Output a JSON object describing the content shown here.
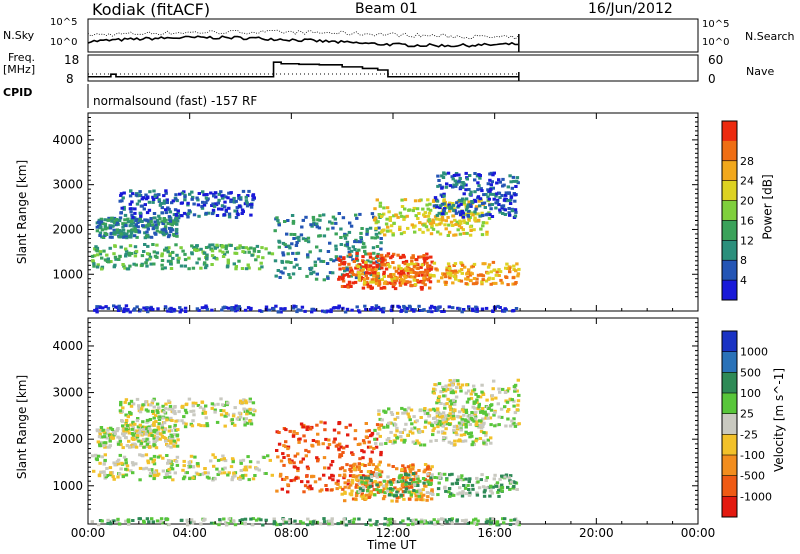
{
  "header": {
    "station": "Kodiak (fitACF)",
    "beam": "Beam 01",
    "date": "16/Jun/2012"
  },
  "nsky_panel": {
    "left_label": "N.Sky",
    "left_ticks": [
      "10^5",
      "10^0"
    ],
    "right_ticks": [
      "10^5",
      "10^0"
    ],
    "right_label": "N.Search"
  },
  "freq_panel": {
    "left_label_line1": "Freq.",
    "left_label_line2": "[MHz]",
    "left_ticks": [
      "18",
      "8"
    ],
    "right_ticks": [
      "60",
      "0"
    ],
    "right_label": "Nave"
  },
  "cpid": {
    "label": "CPID",
    "text": "normalsound (fast) -157 RF"
  },
  "chart_data": [
    {
      "type": "heatmap",
      "name": "power",
      "ylabel": "Slant Range [km]",
      "yticks": [
        1000,
        2000,
        3000,
        4000
      ],
      "ylim": [
        180,
        4600
      ],
      "xlim": [
        0,
        24
      ],
      "data_end_hour": 16.95,
      "colorbar_label": "Power [dB]",
      "colorbar_ticks": [
        "4",
        "8",
        "12",
        "16",
        "20",
        "24",
        "28"
      ],
      "colors": [
        "#1919d8",
        "#2455b5",
        "#2b8f7c",
        "#3aa25a",
        "#7fcf3c",
        "#ddd222",
        "#f2a81c",
        "#ef6e14",
        "#ec2a0f"
      ]
    },
    {
      "type": "heatmap",
      "name": "velocity",
      "ylabel": "Slant Range [km]",
      "yticks": [
        1000,
        2000,
        3000,
        4000
      ],
      "ylim": [
        180,
        4600
      ],
      "xlim": [
        0,
        24
      ],
      "data_end_hour": 16.95,
      "colorbar_label": "Velocity [m s^-1]",
      "colorbar_ticks": [
        "1000",
        "500",
        "100",
        "25",
        "-25",
        "-100",
        "-500",
        "-1000"
      ],
      "colors": [
        "#1a33c4",
        "#2a72b8",
        "#2e8a56",
        "#58c63a",
        "#c9c9c0",
        "#f2c12a",
        "#f28d1e",
        "#ef5a14",
        "#e31a10"
      ]
    }
  ],
  "x_axis": {
    "ticks": [
      "00:00",
      "04:00",
      "08:00",
      "12:00",
      "16:00",
      "20:00",
      "00:00"
    ],
    "label": "Time UT"
  }
}
